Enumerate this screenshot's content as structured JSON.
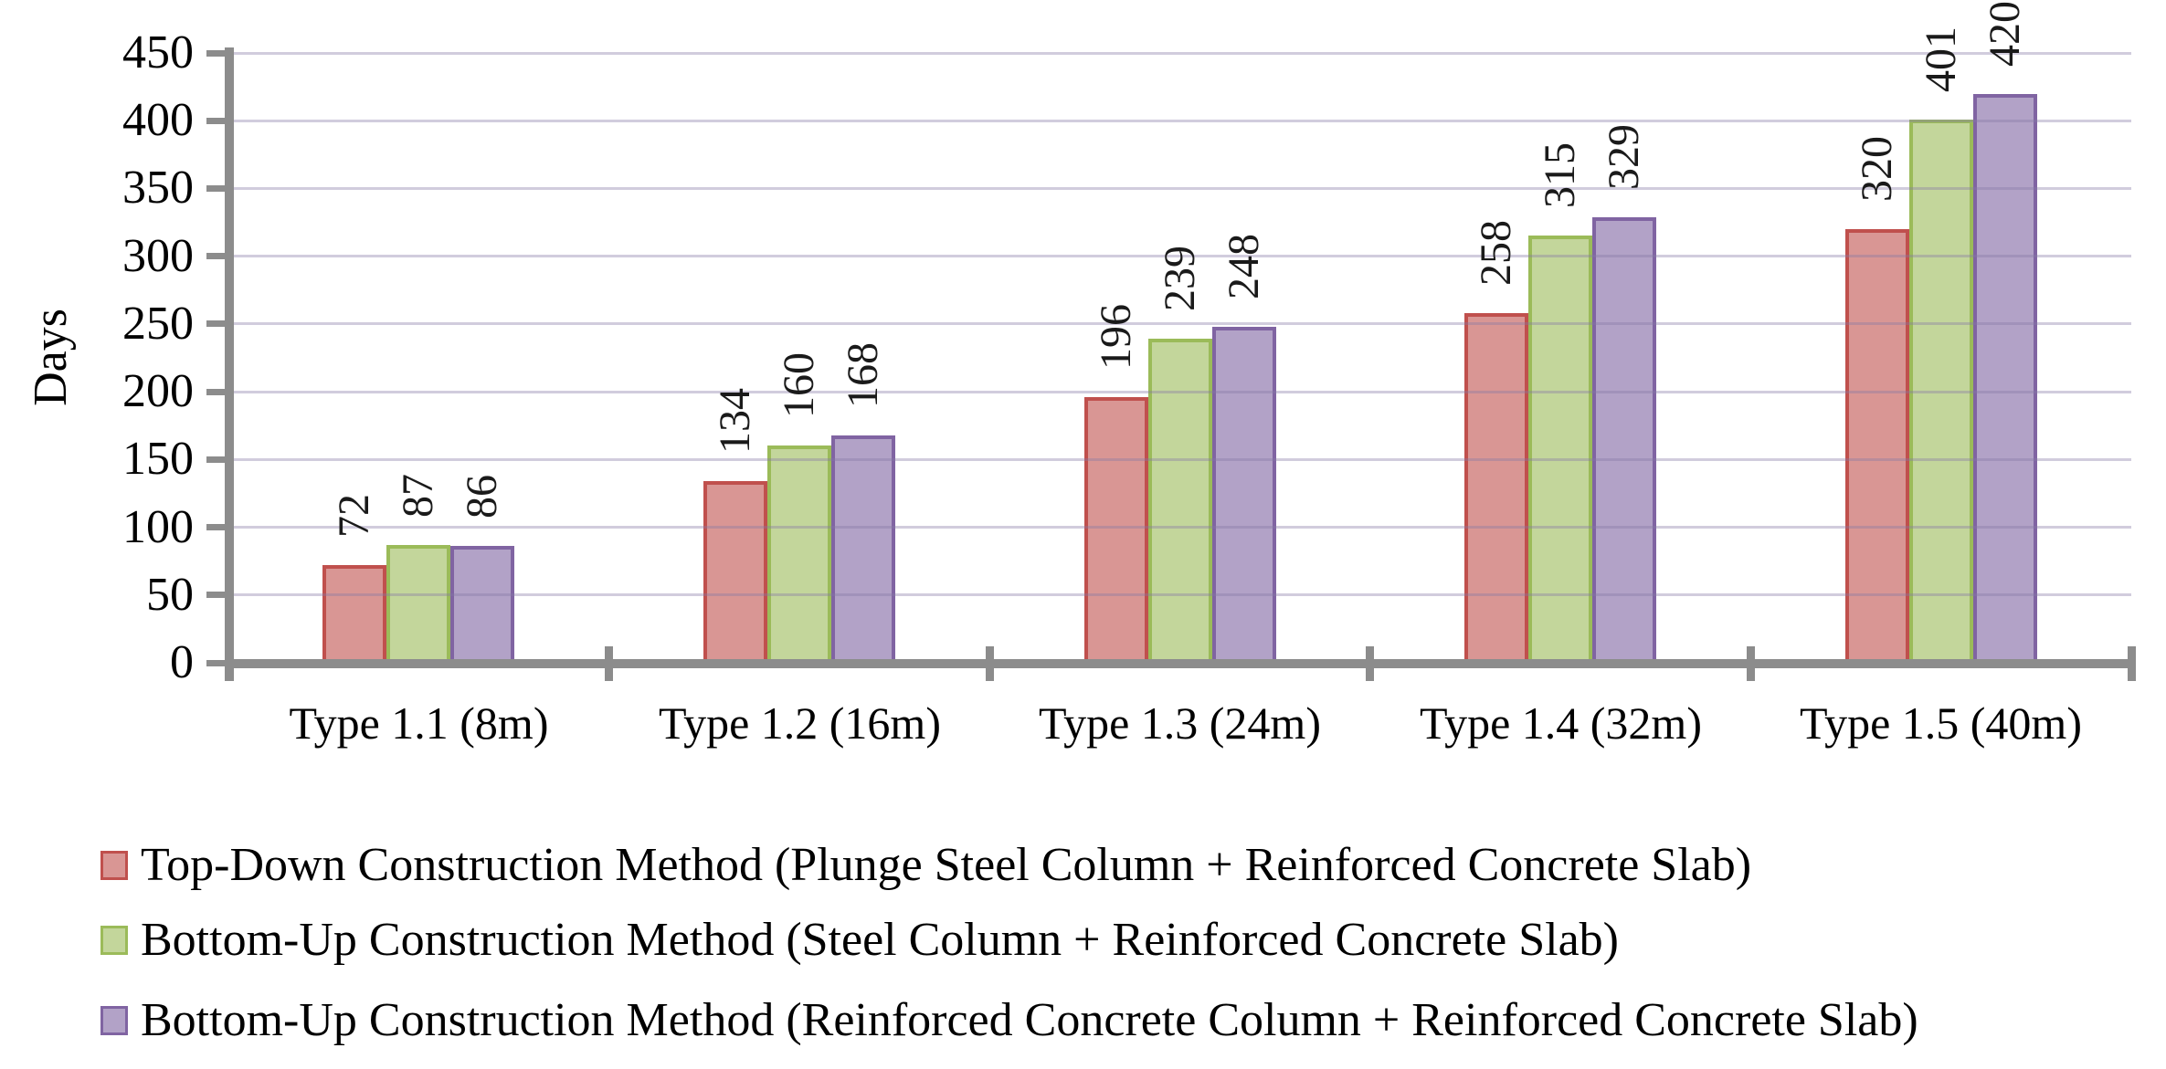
{
  "chart_data": {
    "type": "bar",
    "title": "",
    "xlabel": "",
    "ylabel": "Days",
    "ylim": [
      0,
      450
    ],
    "ytick_step": 50,
    "yticks": [
      0,
      50,
      100,
      150,
      200,
      250,
      300,
      350,
      400,
      450
    ],
    "grid": true,
    "gridline_axis": "y",
    "legend_position": "bottom-left",
    "bar_value_labels": "rotated-90-above-bar",
    "categories": [
      "Type 1.1 (8m)",
      "Type 1.2 (16m)",
      "Type 1.3 (24m)",
      "Type 1.4 (32m)",
      "Type 1.5 (40m)"
    ],
    "series": [
      {
        "name": "Top-Down Construction Method (Plunge Steel Column + Reinforced Concrete Slab)",
        "values": [
          72,
          134,
          196,
          258,
          320
        ],
        "fill": "#D99694",
        "border": "#C0504D"
      },
      {
        "name": "Bottom-Up Construction Method (Steel Column + Reinforced Concrete Slab)",
        "values": [
          87,
          160,
          239,
          315,
          401
        ],
        "fill": "#C3D69B",
        "border": "#9BBB59"
      },
      {
        "name": "Bottom-Up Construction Method (Reinforced Concrete Column + Reinforced Concrete Slab)",
        "values": [
          86,
          168,
          248,
          329,
          420
        ],
        "fill": "#B2A2C7",
        "border": "#8064A2"
      }
    ],
    "colors": {
      "axis": "#8C8C8C",
      "gridline": "#DCD5E8",
      "text": "#000000",
      "background": "#FFFFFF"
    }
  }
}
